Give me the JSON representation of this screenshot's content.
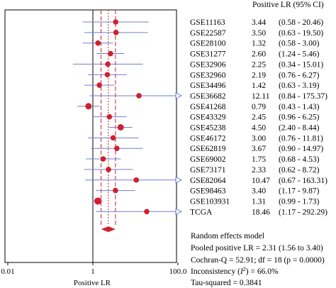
{
  "chart_data": {
    "type": "forest",
    "title": "",
    "xlabel": "Positive LR",
    "x_scale": "log",
    "xlim": [
      0.01,
      100.0
    ],
    "x_ticks": [
      "0.01",
      "1",
      "100.0"
    ],
    "header": "Positive LR (95% CI)",
    "studies": [
      {
        "name": "GSE11163",
        "lr": 3.44,
        "lo": 0.58,
        "hi": 20.46,
        "value_text": "3.44",
        "ci_text": "(0.58 - 20.46)"
      },
      {
        "name": "GSE22587",
        "lr": 3.5,
        "lo": 0.63,
        "hi": 19.5,
        "value_text": "3.50",
        "ci_text": "(0.63 - 19.50)"
      },
      {
        "name": "GSE28100",
        "lr": 1.32,
        "lo": 0.58,
        "hi": 3.0,
        "value_text": "1.32",
        "ci_text": "(0.58 - 3.00)"
      },
      {
        "name": "GSE31277",
        "lr": 2.6,
        "lo": 1.24,
        "hi": 5.46,
        "value_text": "2.60",
        "ci_text": "(1.24 - 5.46)"
      },
      {
        "name": "GSE32906",
        "lr": 2.25,
        "lo": 0.34,
        "hi": 15.01,
        "value_text": "2.25",
        "ci_text": "(0.34 - 15.01)"
      },
      {
        "name": "GSE32960",
        "lr": 2.19,
        "lo": 0.76,
        "hi": 6.27,
        "value_text": "2.19",
        "ci_text": "(0.76 - 6.27)"
      },
      {
        "name": "GSE34496",
        "lr": 1.42,
        "lo": 0.63,
        "hi": 3.19,
        "value_text": "1.42",
        "ci_text": "(0.63 - 3.19)"
      },
      {
        "name": "GSE36682",
        "lr": 12.11,
        "lo": 0.84,
        "hi": 175.37,
        "value_text": "12.11",
        "ci_text": "(0.84 - 175.37)"
      },
      {
        "name": "GSE41268",
        "lr": 0.79,
        "lo": 0.43,
        "hi": 1.43,
        "value_text": "0.79",
        "ci_text": "(0.43 - 1.43)"
      },
      {
        "name": "GSE43329",
        "lr": 2.45,
        "lo": 0.96,
        "hi": 6.25,
        "value_text": "2.45",
        "ci_text": "(0.96 - 6.25)"
      },
      {
        "name": "GSE45238",
        "lr": 4.5,
        "lo": 2.4,
        "hi": 8.44,
        "value_text": "4.50",
        "ci_text": "(2.40 - 8.44)"
      },
      {
        "name": "GSE46172",
        "lr": 3.0,
        "lo": 0.76,
        "hi": 11.81,
        "value_text": "3.00",
        "ci_text": "(0.76 - 11.81)"
      },
      {
        "name": "GSE62819",
        "lr": 3.67,
        "lo": 0.9,
        "hi": 14.97,
        "value_text": "3.67",
        "ci_text": "(0.90 - 14.97)"
      },
      {
        "name": "GSE69002",
        "lr": 1.75,
        "lo": 0.68,
        "hi": 4.53,
        "value_text": "1.75",
        "ci_text": "(0.68 - 4.53)"
      },
      {
        "name": "GSE73171",
        "lr": 2.33,
        "lo": 0.62,
        "hi": 8.72,
        "value_text": "2.33",
        "ci_text": "(0.62 - 8.72)"
      },
      {
        "name": "GSE82064",
        "lr": 10.47,
        "lo": 0.67,
        "hi": 163.31,
        "value_text": "10.47",
        "ci_text": "(0.67 - 163.31)"
      },
      {
        "name": "GSE98463",
        "lr": 3.4,
        "lo": 1.17,
        "hi": 9.87,
        "value_text": "3.40",
        "ci_text": "(1.17 - 9.87)"
      },
      {
        "name": "GSE103931",
        "lr": 1.31,
        "lo": 0.99,
        "hi": 1.73,
        "value_text": "1.31",
        "ci_text": "(0.99 - 1.73)"
      },
      {
        "name": "TCGA",
        "lr": 18.46,
        "lo": 1.17,
        "hi": 292.29,
        "value_text": "18.46",
        "ci_text": "(1.17 - 292.29)"
      }
    ],
    "pooled": {
      "lr": 2.31,
      "lo": 1.56,
      "hi": 3.4
    },
    "summary": {
      "model": "Random effects model",
      "pooled": "Pooled positive LR = 2.31 (1.56 to 3.40)",
      "cochran": "Cochran-Q = 52.91; df = 18 (p = 0.0000)",
      "inconsistency": "Inconsistency (I2) = 66.0%",
      "tau": "Tau-squared = 0.3841"
    },
    "colors": {
      "point": "#d0202e",
      "ci_line": "#6f7fd0",
      "ref_line": "#000000",
      "pooled_line": "#d0202e"
    }
  }
}
